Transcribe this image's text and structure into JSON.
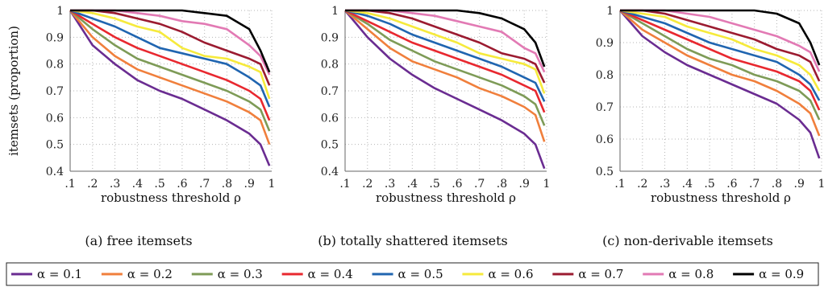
{
  "figure": {
    "ylabel": "itemsets (proportion)",
    "xlabel": "robustness threshold ρ",
    "legend_prefix": "α = "
  },
  "colors": {
    "0.1": "#6a2c91",
    "0.2": "#f07f3c",
    "0.3": "#7e9b57",
    "0.4": "#e8282f",
    "0.5": "#2065b0",
    "0.6": "#f6ea3c",
    "0.7": "#9b1b30",
    "0.8": "#e27ab4",
    "0.9": "#000000"
  },
  "chart_data": [
    {
      "type": "line",
      "caption": "(a) free itemsets",
      "xlabel": "robustness threshold ρ",
      "ylabel": "itemsets (proportion)",
      "xlim": [
        0.1,
        1.0
      ],
      "ylim": [
        0.4,
        1.0
      ],
      "xticks": [
        ".1",
        ".2",
        ".3",
        ".4",
        ".5",
        ".6",
        ".7",
        ".8",
        ".9",
        "1"
      ],
      "yticks": [
        "0.4",
        "0.5",
        "0.6",
        "0.7",
        "0.8",
        "0.9",
        "1"
      ],
      "ytick_values": [
        0.4,
        0.5,
        0.6,
        0.7,
        0.8,
        0.9,
        1.0
      ],
      "grid": "dotted",
      "x": [
        0.1,
        0.2,
        0.3,
        0.4,
        0.5,
        0.6,
        0.7,
        0.8,
        0.9,
        0.95,
        0.99
      ],
      "series": [
        {
          "name": "α = 0.1",
          "values": [
            1.0,
            0.87,
            0.8,
            0.74,
            0.7,
            0.67,
            0.63,
            0.59,
            0.54,
            0.5,
            0.42
          ]
        },
        {
          "name": "α = 0.2",
          "values": [
            1.0,
            0.9,
            0.83,
            0.78,
            0.75,
            0.72,
            0.69,
            0.66,
            0.62,
            0.59,
            0.5
          ]
        },
        {
          "name": "α = 0.3",
          "values": [
            1.0,
            0.93,
            0.87,
            0.82,
            0.79,
            0.76,
            0.73,
            0.7,
            0.66,
            0.63,
            0.55
          ]
        },
        {
          "name": "α = 0.4",
          "values": [
            1.0,
            0.95,
            0.9,
            0.86,
            0.83,
            0.8,
            0.77,
            0.74,
            0.7,
            0.67,
            0.59
          ]
        },
        {
          "name": "α = 0.5",
          "values": [
            1.0,
            0.97,
            0.94,
            0.9,
            0.86,
            0.84,
            0.82,
            0.8,
            0.75,
            0.72,
            0.64
          ]
        },
        {
          "name": "α = 0.6",
          "values": [
            1.0,
            0.99,
            0.97,
            0.94,
            0.92,
            0.86,
            0.83,
            0.82,
            0.79,
            0.77,
            0.67
          ]
        },
        {
          "name": "α = 0.7",
          "values": [
            1.0,
            1.0,
            0.99,
            0.97,
            0.95,
            0.92,
            0.88,
            0.85,
            0.82,
            0.8,
            0.72
          ]
        },
        {
          "name": "α = 0.8",
          "values": [
            1.0,
            1.0,
            1.0,
            0.99,
            0.98,
            0.96,
            0.95,
            0.93,
            0.87,
            0.83,
            0.76
          ]
        },
        {
          "name": "α = 0.9",
          "values": [
            1.0,
            1.0,
            1.0,
            1.0,
            1.0,
            1.0,
            0.99,
            0.98,
            0.93,
            0.85,
            0.77
          ]
        }
      ]
    },
    {
      "type": "line",
      "caption": "(b) totally shattered itemsets",
      "xlabel": "robustness threshold ρ",
      "ylabel": "",
      "xlim": [
        0.1,
        1.0
      ],
      "ylim": [
        0.4,
        1.0
      ],
      "xticks": [
        ".1",
        ".2",
        ".3",
        ".4",
        ".5",
        ".6",
        ".7",
        ".8",
        ".9",
        "1"
      ],
      "yticks": [
        "0.4",
        "0.5",
        "0.6",
        "0.7",
        "0.8",
        "0.9",
        "1"
      ],
      "ytick_values": [
        0.4,
        0.5,
        0.6,
        0.7,
        0.8,
        0.9,
        1.0
      ],
      "grid": "dotted",
      "x": [
        0.1,
        0.2,
        0.3,
        0.4,
        0.5,
        0.6,
        0.7,
        0.8,
        0.9,
        0.95,
        0.99
      ],
      "series": [
        {
          "name": "α = 0.1",
          "values": [
            1.0,
            0.9,
            0.82,
            0.76,
            0.71,
            0.67,
            0.63,
            0.59,
            0.54,
            0.5,
            0.41
          ]
        },
        {
          "name": "α = 0.2",
          "values": [
            1.0,
            0.93,
            0.86,
            0.81,
            0.78,
            0.75,
            0.71,
            0.68,
            0.64,
            0.61,
            0.51
          ]
        },
        {
          "name": "α = 0.3",
          "values": [
            1.0,
            0.95,
            0.89,
            0.85,
            0.81,
            0.78,
            0.75,
            0.72,
            0.68,
            0.65,
            0.57
          ]
        },
        {
          "name": "α = 0.4",
          "values": [
            1.0,
            0.96,
            0.92,
            0.88,
            0.85,
            0.82,
            0.79,
            0.76,
            0.72,
            0.7,
            0.62
          ]
        },
        {
          "name": "α = 0.5",
          "values": [
            1.0,
            0.98,
            0.95,
            0.91,
            0.88,
            0.85,
            0.82,
            0.79,
            0.75,
            0.73,
            0.66
          ]
        },
        {
          "name": "α = 0.6",
          "values": [
            1.0,
            0.99,
            0.97,
            0.94,
            0.91,
            0.88,
            0.84,
            0.82,
            0.8,
            0.78,
            0.69
          ]
        },
        {
          "name": "α = 0.7",
          "values": [
            1.0,
            1.0,
            0.99,
            0.97,
            0.94,
            0.91,
            0.88,
            0.84,
            0.82,
            0.8,
            0.73
          ]
        },
        {
          "name": "α = 0.8",
          "values": [
            1.0,
            1.0,
            1.0,
            0.99,
            0.98,
            0.96,
            0.94,
            0.92,
            0.86,
            0.84,
            0.77
          ]
        },
        {
          "name": "α = 0.9",
          "values": [
            1.0,
            1.0,
            1.0,
            1.0,
            1.0,
            1.0,
            0.99,
            0.97,
            0.93,
            0.88,
            0.79
          ]
        }
      ]
    },
    {
      "type": "line",
      "caption": "(c) non-derivable itemsets",
      "xlabel": "robustness threshold ρ",
      "ylabel": "",
      "xlim": [
        0.1,
        1.0
      ],
      "ylim": [
        0.5,
        1.0
      ],
      "xticks": [
        ".1",
        ".2",
        ".3",
        ".4",
        ".5",
        ".6",
        ".7",
        ".8",
        ".9",
        "1"
      ],
      "yticks": [
        "0.5",
        "0.6",
        "0.7",
        "0.8",
        "0.9",
        "1"
      ],
      "ytick_values": [
        0.5,
        0.6,
        0.7,
        0.8,
        0.9,
        1.0
      ],
      "grid": "dotted",
      "x": [
        0.1,
        0.2,
        0.3,
        0.4,
        0.5,
        0.6,
        0.7,
        0.8,
        0.9,
        0.95,
        0.99
      ],
      "series": [
        {
          "name": "α = 0.1",
          "values": [
            1.0,
            0.92,
            0.87,
            0.83,
            0.8,
            0.77,
            0.74,
            0.71,
            0.66,
            0.62,
            0.54
          ]
        },
        {
          "name": "α = 0.2",
          "values": [
            1.0,
            0.94,
            0.9,
            0.86,
            0.83,
            0.8,
            0.78,
            0.75,
            0.71,
            0.68,
            0.61
          ]
        },
        {
          "name": "α = 0.3",
          "values": [
            1.0,
            0.96,
            0.92,
            0.88,
            0.85,
            0.83,
            0.8,
            0.78,
            0.75,
            0.72,
            0.66
          ]
        },
        {
          "name": "α = 0.4",
          "values": [
            1.0,
            0.97,
            0.94,
            0.91,
            0.88,
            0.85,
            0.83,
            0.81,
            0.78,
            0.75,
            0.69
          ]
        },
        {
          "name": "α = 0.5",
          "values": [
            1.0,
            0.98,
            0.96,
            0.93,
            0.9,
            0.88,
            0.86,
            0.84,
            0.8,
            0.77,
            0.72
          ]
        },
        {
          "name": "α = 0.6",
          "values": [
            1.0,
            0.99,
            0.98,
            0.95,
            0.93,
            0.91,
            0.88,
            0.86,
            0.83,
            0.8,
            0.75
          ]
        },
        {
          "name": "α = 0.7",
          "values": [
            1.0,
            1.0,
            0.99,
            0.97,
            0.95,
            0.93,
            0.91,
            0.88,
            0.86,
            0.84,
            0.78
          ]
        },
        {
          "name": "α = 0.8",
          "values": [
            1.0,
            1.0,
            1.0,
            0.99,
            0.98,
            0.96,
            0.94,
            0.92,
            0.89,
            0.87,
            0.81
          ]
        },
        {
          "name": "α = 0.9",
          "values": [
            1.0,
            1.0,
            1.0,
            1.0,
            1.0,
            1.0,
            1.0,
            0.99,
            0.96,
            0.9,
            0.83
          ]
        }
      ]
    }
  ],
  "legend": {
    "entries": [
      {
        "label": "α = 0.1",
        "key": "0.1"
      },
      {
        "label": "α = 0.2",
        "key": "0.2"
      },
      {
        "label": "α = 0.3",
        "key": "0.3"
      },
      {
        "label": "α = 0.4",
        "key": "0.4"
      },
      {
        "label": "α = 0.5",
        "key": "0.5"
      },
      {
        "label": "α = 0.6",
        "key": "0.6"
      },
      {
        "label": "α = 0.7",
        "key": "0.7"
      },
      {
        "label": "α = 0.8",
        "key": "0.8"
      },
      {
        "label": "α = 0.9",
        "key": "0.9"
      }
    ]
  }
}
